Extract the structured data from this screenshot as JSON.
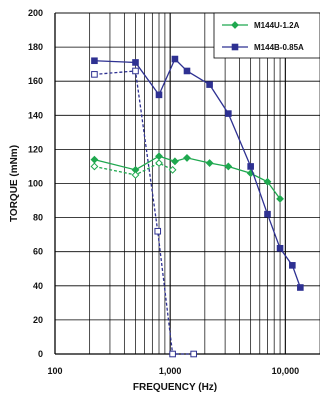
{
  "chart_data": {
    "type": "line",
    "xlabel": "FREQUENCY (Hz)",
    "ylabel": "TORQUE (mNm)",
    "x_scale": "log",
    "xlim": [
      100,
      20000
    ],
    "ylim": [
      0,
      200
    ],
    "x_ticks": [
      {
        "value": 100,
        "label": "100"
      },
      {
        "value": 1000,
        "label": "1,000"
      },
      {
        "value": 10000,
        "label": "10,000"
      }
    ],
    "y_ticks": [
      0,
      20,
      40,
      60,
      80,
      100,
      120,
      140,
      160,
      180,
      200
    ],
    "grid": true,
    "legend_position": "top-right",
    "series": [
      {
        "name": "M144U-1.2A",
        "color": "#1fa84f",
        "marker": "diamond",
        "line": "solid",
        "x": [
          220,
          500,
          800,
          1100,
          1400,
          2200,
          3200,
          5000,
          7000,
          9000
        ],
        "y": [
          114,
          108,
          116,
          113,
          115,
          112,
          110,
          106,
          101,
          91
        ]
      },
      {
        "name": "M144U-1.2A (dashed)",
        "color": "#1fa84f",
        "marker": "open-diamond",
        "line": "dashed",
        "x": [
          220,
          500,
          800,
          1050
        ],
        "y": [
          110,
          105,
          112,
          108
        ]
      },
      {
        "name": "M144B-0.85A",
        "color": "#2e3192",
        "marker": "square",
        "line": "solid",
        "x": [
          220,
          500,
          800,
          1100,
          1400,
          2200,
          3200,
          5000,
          7000,
          9000,
          11500,
          13500
        ],
        "y": [
          172,
          171,
          152,
          173,
          166,
          158,
          141,
          110,
          82,
          62,
          52,
          39
        ]
      },
      {
        "name": "M144B-0.85A (dashed)",
        "color": "#2e3192",
        "marker": "open-square",
        "line": "dashed",
        "x": [
          220,
          500,
          780,
          1050,
          1600
        ],
        "y": [
          164,
          166,
          72,
          0,
          0
        ]
      }
    ],
    "legend": [
      {
        "name": "M144U-1.2A",
        "color": "#1fa84f",
        "marker": "diamond"
      },
      {
        "name": "M144B-0.85A",
        "color": "#2e3192",
        "marker": "square"
      }
    ]
  }
}
